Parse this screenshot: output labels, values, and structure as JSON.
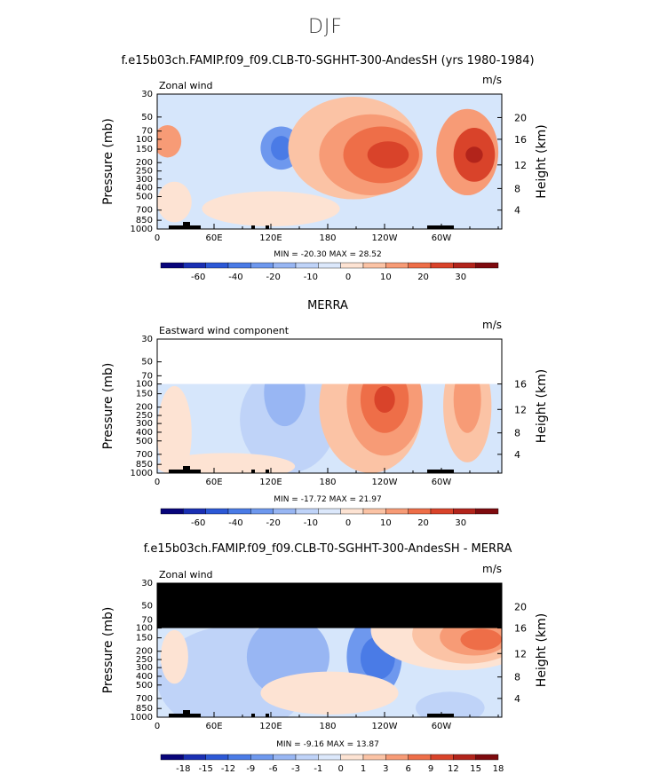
{
  "page_title": "DJF",
  "palette_main": [
    "#08047a",
    "#1a2fb3",
    "#2c58d6",
    "#4a7be6",
    "#6e98ee",
    "#98b6f3",
    "#bfd3f8",
    "#dce8fb",
    "#fde3d3",
    "#fbc3a5",
    "#f79b76",
    "#ee6e48",
    "#d9432a",
    "#b2241b",
    "#7e0a0e"
  ],
  "palette_diff": [
    "#08047a",
    "#1a2fb3",
    "#2c58d6",
    "#4a7be6",
    "#6e98ee",
    "#98b6f3",
    "#bfd3f8",
    "#dce8fb",
    "#fde3d3",
    "#fbc3a5",
    "#f79b76",
    "#ee6e48",
    "#d9432a",
    "#b2241b",
    "#7e0a0e"
  ],
  "chart_data": [
    {
      "type": "heatmap",
      "title": "f.e15b03ch.FAMIP.f09_f09.CLB-T0-SGHHT-300-AndesSH (yrs 1980-1984)",
      "left_label": "Zonal wind",
      "units": "m/s",
      "ylabel": "Pressure (mb)",
      "y2label": "Height (km)",
      "x_ticks": [
        "0",
        "60E",
        "120E",
        "180",
        "120W",
        "60W"
      ],
      "y_ticks": [
        "30",
        "50",
        "70",
        "100",
        "150",
        "200",
        "250",
        "300",
        "400",
        "500",
        "700",
        "850",
        "1000"
      ],
      "y2_ticks": [
        "20",
        "16",
        "12",
        "8",
        "4"
      ],
      "xlim": [
        0,
        360
      ],
      "ylim": [
        1000,
        30
      ],
      "min_max": "MIN = -20.30   MAX =  28.52",
      "colorbar_labels": [
        "-60",
        "-40",
        "-20",
        "-10",
        "0",
        "10",
        "20",
        "30"
      ],
      "masked_above": null
    },
    {
      "type": "heatmap",
      "title": "MERRA",
      "left_label": "Eastward wind component",
      "units": "m/s",
      "ylabel": "Pressure (mb)",
      "y2label": "Height (km)",
      "x_ticks": [
        "0",
        "60E",
        "120E",
        "180",
        "120W",
        "60W"
      ],
      "y_ticks": [
        "30",
        "50",
        "70",
        "100",
        "150",
        "200",
        "250",
        "300",
        "400",
        "500",
        "700",
        "850",
        "1000"
      ],
      "y2_ticks": [
        "16",
        "12",
        "8",
        "4"
      ],
      "xlim": [
        0,
        360
      ],
      "ylim": [
        1000,
        30
      ],
      "min_max": "MIN = -17.72   MAX =  21.97",
      "colorbar_labels": [
        "-60",
        "-40",
        "-20",
        "-10",
        "0",
        "10",
        "20",
        "30"
      ],
      "masked_above": "white"
    },
    {
      "type": "heatmap",
      "title": "f.e15b03ch.FAMIP.f09_f09.CLB-T0-SGHHT-300-AndesSH - MERRA",
      "left_label": "Zonal wind",
      "units": "m/s",
      "ylabel": "Pressure (mb)",
      "y2label": "Height (km)",
      "x_ticks": [
        "0",
        "60E",
        "120E",
        "180",
        "120W",
        "60W"
      ],
      "y_ticks": [
        "30",
        "50",
        "70",
        "100",
        "150",
        "200",
        "250",
        "300",
        "400",
        "500",
        "700",
        "850",
        "1000"
      ],
      "y2_ticks": [
        "20",
        "16",
        "12",
        "8",
        "4"
      ],
      "xlim": [
        0,
        360
      ],
      "ylim": [
        1000,
        30
      ],
      "min_max": "MIN =  -9.16   MAX =  13.87",
      "colorbar_labels": [
        "-18",
        "-15",
        "-12",
        "-9",
        "-6",
        "-3",
        "-1",
        "0",
        "1",
        "3",
        "6",
        "9",
        "12",
        "15",
        "18"
      ],
      "masked_above": "black"
    }
  ]
}
